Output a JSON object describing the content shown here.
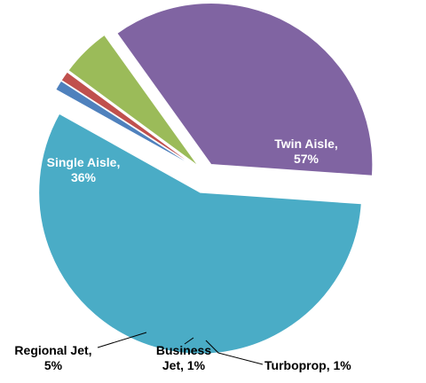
{
  "chart_data": {
    "type": "pie",
    "title": "",
    "categories": [
      "Twin Aisle",
      "Turboprop",
      "Business Jet",
      "Regional Jet",
      "Single Aisle"
    ],
    "values": [
      57,
      1,
      1,
      5,
      36
    ],
    "series": [
      {
        "name": "Twin Aisle",
        "value": 57,
        "color": "#4aacc6",
        "label_lines": [
          "Twin Aisle,",
          "57%"
        ]
      },
      {
        "name": "Turboprop",
        "value": 1,
        "color": "#4f81bd",
        "label_lines": [
          "Turboprop, 1%"
        ]
      },
      {
        "name": "Business Jet",
        "value": 1,
        "color": "#c0504d",
        "label_lines": [
          "Business",
          "Jet, 1%"
        ]
      },
      {
        "name": "Regional Jet",
        "value": 5,
        "color": "#9bbb59",
        "label_lines": [
          "Regional Jet,",
          "5%"
        ]
      },
      {
        "name": "Single Aisle",
        "value": 36,
        "color": "#8064a2",
        "label_lines": [
          "Single Aisle,",
          "36%"
        ]
      }
    ],
    "legend": "none",
    "exploded_slices": true,
    "leader_lines": true
  }
}
